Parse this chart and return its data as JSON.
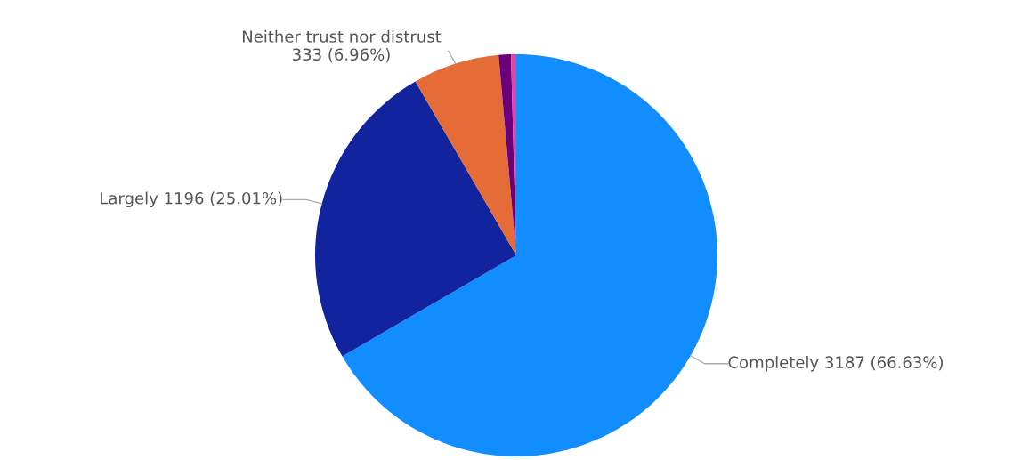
{
  "chart_data": {
    "type": "pie",
    "categories": [
      "Completely",
      "Largely",
      "Neither trust nor distrust",
      null,
      null
    ],
    "values": [
      3187,
      1196,
      333,
      47,
      20
    ],
    "colors": [
      "#118dff",
      "#12239e",
      "#e66c37",
      "#6b007b",
      "#e044a7"
    ],
    "value_labels": [
      "3187 (66.63%)",
      "1196 (25.01%)",
      "333 (6.96%)",
      null,
      null
    ],
    "legend": false
  }
}
